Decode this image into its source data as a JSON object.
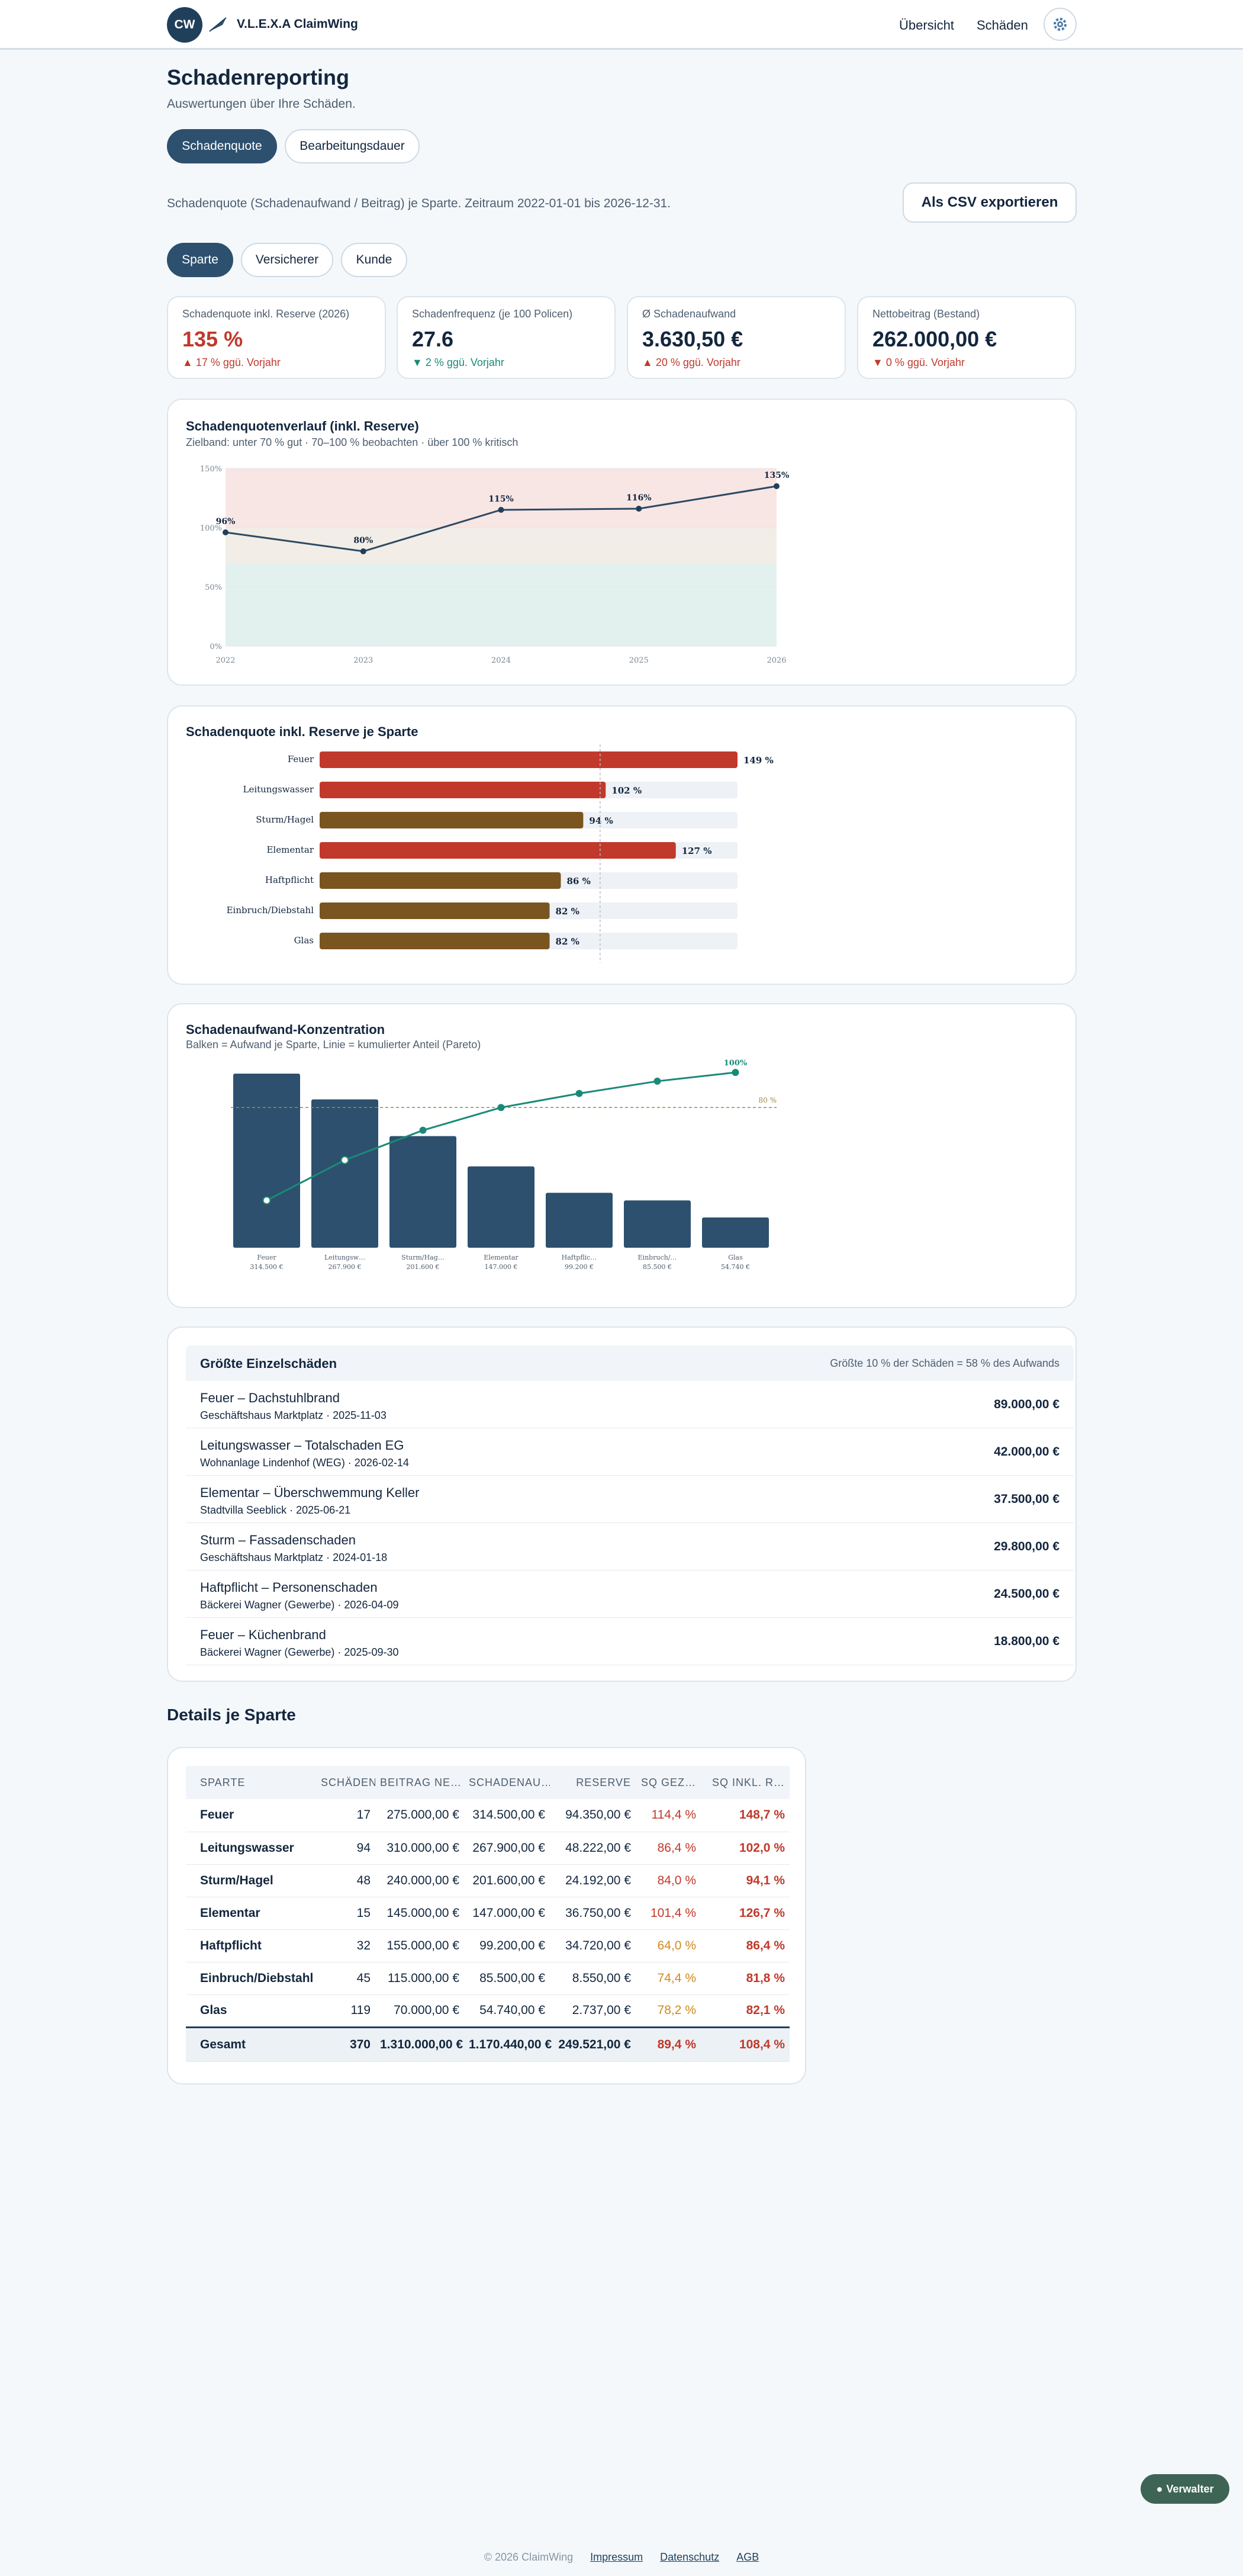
{
  "header": {
    "logo_initials": "CW",
    "brand": "V.L.E.X.A ClaimWing",
    "nav": [
      "Übersicht",
      "Schäden"
    ]
  },
  "page": {
    "title": "Schadenreporting",
    "subtitle": "Auswertungen über Ihre Schäden."
  },
  "view_tabs": [
    "Schadenquote",
    "Bearbeitungsdauer"
  ],
  "description": "Schadenquote (Schadenaufwand / Beitrag) je Sparte. Zeitraum 2022-01-01 bis 2026-12-31.",
  "export_label": "Als CSV exportieren",
  "group_tabs": [
    "Sparte",
    "Versicherer",
    "Kunde"
  ],
  "kpis": [
    {
      "label": "Schadenquote inkl. Reserve (2026)",
      "value": "135 %",
      "change": "▲ 17 % ggü. Vorjahr",
      "value_color": "#c0392b",
      "change_color": "#c0392b"
    },
    {
      "label": "Schadenfrequenz (je 100 Policen)",
      "value": "27.6",
      "change": "▼ 2 % ggü. Vorjahr",
      "value_color": "#13263d",
      "change_color": "#1a8a78"
    },
    {
      "label": "Ø Schadenaufwand",
      "value": "3.630,50 €",
      "change": "▲ 20 % ggü. Vorjahr",
      "value_color": "#13263d",
      "change_color": "#c0392b"
    },
    {
      "label": "Nettobeitrag (Bestand)",
      "value": "262.000,00 €",
      "change": "▼ 0 % ggü. Vorjahr",
      "value_color": "#13263d",
      "change_color": "#c0392b"
    }
  ],
  "trend_card": {
    "title": "Schadenquotenverlauf (inkl. Reserve)",
    "subtitle": "Zielband: unter 70 % gut · 70–100 % beobachten · über 100 % kritisch"
  },
  "sparte_card": {
    "title": "Schadenquote inkl. Reserve je Sparte"
  },
  "pareto_card": {
    "title": "Schadenaufwand-Konzentration",
    "subtitle": "Balken = Aufwand je Sparte, Linie = kumulierter Anteil (Pareto)"
  },
  "chart_data": [
    {
      "type": "line",
      "x": [
        "2022",
        "2023",
        "2024",
        "2025",
        "2026"
      ],
      "values": [
        96,
        80,
        115,
        116,
        135
      ],
      "labels": [
        "96%",
        "80%",
        "115%",
        "116%",
        "135%"
      ],
      "y_ticks": [
        "0%",
        "50%",
        "100%",
        "150%"
      ],
      "ylim": [
        0,
        150
      ],
      "bands": [
        {
          "from": 0,
          "to": 70,
          "color": "#e3f1ee"
        },
        {
          "from": 70,
          "to": 100,
          "color": "#f2ede7"
        },
        {
          "from": 100,
          "to": 150,
          "color": "#f8e6e5"
        }
      ]
    },
    {
      "type": "bar",
      "orientation": "horizontal",
      "categories": [
        "Feuer",
        "Leitungswasser",
        "Sturm/Hagel",
        "Elementar",
        "Haftpflicht",
        "Einbruch/Diebstahl",
        "Glas"
      ],
      "values": [
        149,
        102,
        94,
        127,
        86,
        82,
        82
      ],
      "labels": [
        "149 %",
        "102 %",
        "94 %",
        "127 %",
        "86 %",
        "82 %",
        "82 %"
      ],
      "colors": [
        "#c0392b",
        "#c0392b",
        "#7a5520",
        "#c0392b",
        "#7a5520",
        "#7a5520",
        "#7a5520"
      ],
      "xlim": [
        0,
        149
      ],
      "reference": 100
    },
    {
      "type": "bar",
      "categories": [
        "Feuer",
        "Leitungsw…",
        "Sturm/Hag…",
        "Elementar",
        "Haftpflic…",
        "Einbruch/…",
        "Glas"
      ],
      "value_labels": [
        "314.500 €",
        "267.900 €",
        "201.600 €",
        "147.000 €",
        "99.200 €",
        "85.500 €",
        "54.740 €"
      ],
      "values": [
        314500,
        267900,
        201600,
        147000,
        99200,
        85500,
        54740
      ],
      "cumulative_pct": [
        27,
        50,
        67,
        80,
        88,
        95,
        100
      ],
      "top_label": "100%",
      "ref_label": "80 %",
      "reference": 80
    }
  ],
  "largest": {
    "title": "Größte Einzelschäden",
    "note": "Größte 10 % der Schäden = 58 % des Aufwands",
    "rows": [
      {
        "name": "Feuer – Dachstuhlbrand",
        "meta": "Geschäftshaus Marktplatz · 2025-11-03",
        "amount": "89.000,00 €"
      },
      {
        "name": "Leitungswasser – Totalschaden EG",
        "meta": "Wohnanlage Lindenhof (WEG) · 2026-02-14",
        "amount": "42.000,00 €"
      },
      {
        "name": "Elementar – Überschwemmung Keller",
        "meta": "Stadtvilla Seeblick · 2025-06-21",
        "amount": "37.500,00 €"
      },
      {
        "name": "Sturm – Fassadenschaden",
        "meta": "Geschäftshaus Marktplatz · 2024-01-18",
        "amount": "29.800,00 €"
      },
      {
        "name": "Haftpflicht – Personenschaden",
        "meta": "Bäckerei Wagner (Gewerbe) · 2026-04-09",
        "amount": "24.500,00 €"
      },
      {
        "name": "Feuer – Küchenbrand",
        "meta": "Bäckerei Wagner (Gewerbe) · 2025-09-30",
        "amount": "18.800,00 €"
      }
    ]
  },
  "details": {
    "title": "Details je Sparte",
    "columns": [
      "SPARTE",
      "SCHÄDEN",
      "BEITRAG NE…",
      "SCHADENAU…",
      "RESERVE",
      "SQ GEZ…",
      "SQ INKL. R…"
    ],
    "rows": [
      [
        "Feuer",
        "17",
        "275.000,00 €",
        "314.500,00 €",
        "94.350,00 €",
        "114,4 %",
        "148,7 %"
      ],
      [
        "Leitungswasser",
        "94",
        "310.000,00 €",
        "267.900,00 €",
        "48.222,00 €",
        "86,4 %",
        "102,0 %"
      ],
      [
        "Sturm/Hagel",
        "48",
        "240.000,00 €",
        "201.600,00 €",
        "24.192,00 €",
        "84,0 %",
        "94,1 %"
      ],
      [
        "Elementar",
        "15",
        "145.000,00 €",
        "147.000,00 €",
        "36.750,00 €",
        "101,4 %",
        "126,7 %"
      ],
      [
        "Haftpflicht",
        "32",
        "155.000,00 €",
        "99.200,00 €",
        "34.720,00 €",
        "64,0 %",
        "86,4 %"
      ],
      [
        "Einbruch/Diebstahl",
        "45",
        "115.000,00 €",
        "85.500,00 €",
        "8.550,00 €",
        "74,4 %",
        "81,8 %"
      ],
      [
        "Glas",
        "119",
        "70.000,00 €",
        "54.740,00 €",
        "2.737,00 €",
        "78,2 %",
        "82,1 %"
      ]
    ],
    "sq_colors": [
      [
        "#c0392b",
        "#c0392b"
      ],
      [
        "#c0392b",
        "#c0392b"
      ],
      [
        "#c0392b",
        "#c0392b"
      ],
      [
        "#c0392b",
        "#c0392b"
      ],
      [
        "#d08a1f",
        "#c0392b"
      ],
      [
        "#d08a1f",
        "#c0392b"
      ],
      [
        "#d08a1f",
        "#c0392b"
      ]
    ],
    "total": [
      "Gesamt",
      "370",
      "1.310.000,00 €",
      "1.170.440,00 €",
      "249.521,00 €",
      "89,4 %",
      "108,4 %"
    ]
  },
  "chat_label": "Verwalter",
  "footer": {
    "copyright": "© 2026 ClaimWing",
    "links": [
      "Impressum",
      "Datenschutz",
      "AGB"
    ]
  },
  "colors": {
    "primary": "#2c506d",
    "critical": "#c0392b",
    "warning": "#d08a1f",
    "good": "#1a8a78",
    "bar_dark": "#2c506d"
  }
}
